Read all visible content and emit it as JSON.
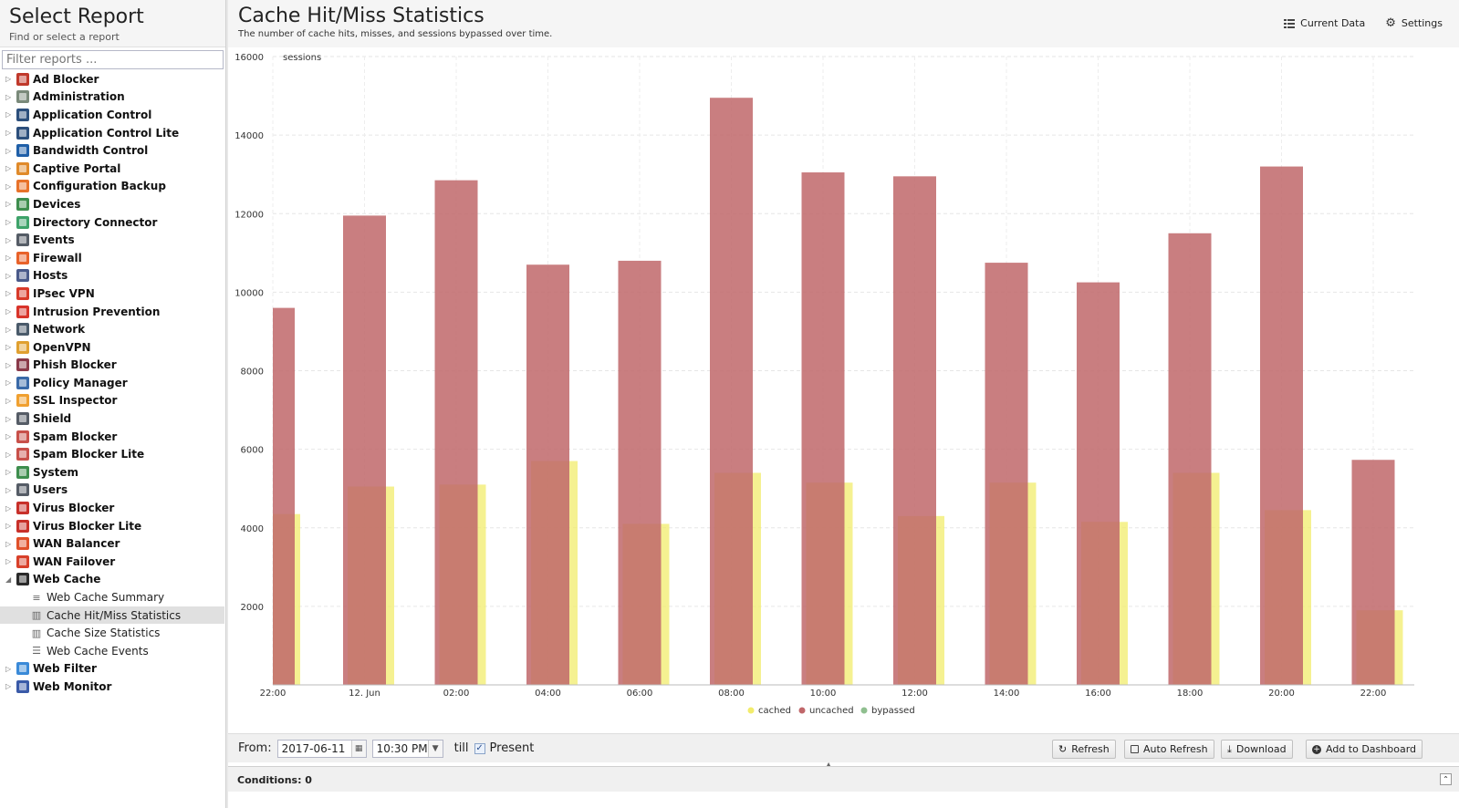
{
  "sidebar": {
    "title": "Select Report",
    "subtitle": "Find or select a report",
    "filter_placeholder": "Filter reports ...",
    "items": [
      {
        "label": "Ad Blocker",
        "icon": "ad-blocker-icon",
        "color": "#c0392b"
      },
      {
        "label": "Administration",
        "icon": "administration-icon",
        "color": "#7a8a7a"
      },
      {
        "label": "Application Control",
        "icon": "application-control-icon",
        "color": "#2c4f7c"
      },
      {
        "label": "Application Control Lite",
        "icon": "application-control-lite-icon",
        "color": "#2c4f7c"
      },
      {
        "label": "Bandwidth Control",
        "icon": "bandwidth-control-icon",
        "color": "#1f5fa8"
      },
      {
        "label": "Captive Portal",
        "icon": "captive-portal-icon",
        "color": "#e08a2a"
      },
      {
        "label": "Configuration Backup",
        "icon": "configuration-backup-icon",
        "color": "#e8722a"
      },
      {
        "label": "Devices",
        "icon": "devices-icon",
        "color": "#3e8e4e"
      },
      {
        "label": "Directory Connector",
        "icon": "directory-connector-icon",
        "color": "#3ea36a"
      },
      {
        "label": "Events",
        "icon": "events-icon",
        "color": "#555c66"
      },
      {
        "label": "Firewall",
        "icon": "firewall-icon",
        "color": "#e8622a"
      },
      {
        "label": "Hosts",
        "icon": "hosts-icon",
        "color": "#4a5a8a"
      },
      {
        "label": "IPsec VPN",
        "icon": "ipsec-vpn-icon",
        "color": "#d83a2a"
      },
      {
        "label": "Intrusion Prevention",
        "icon": "intrusion-prevention-icon",
        "color": "#d8342a"
      },
      {
        "label": "Network",
        "icon": "network-icon",
        "color": "#4a5a6a"
      },
      {
        "label": "OpenVPN",
        "icon": "openvpn-icon",
        "color": "#e0a030"
      },
      {
        "label": "Phish Blocker",
        "icon": "phish-blocker-icon",
        "color": "#8a3a4a"
      },
      {
        "label": "Policy Manager",
        "icon": "policy-manager-icon",
        "color": "#3a6aa8"
      },
      {
        "label": "SSL Inspector",
        "icon": "ssl-inspector-icon",
        "color": "#f0a030"
      },
      {
        "label": "Shield",
        "icon": "shield-icon",
        "color": "#555c66"
      },
      {
        "label": "Spam Blocker",
        "icon": "spam-blocker-icon",
        "color": "#c8504a"
      },
      {
        "label": "Spam Blocker Lite",
        "icon": "spam-blocker-lite-icon",
        "color": "#c8504a"
      },
      {
        "label": "System",
        "icon": "system-icon",
        "color": "#3e8e4e"
      },
      {
        "label": "Users",
        "icon": "users-icon",
        "color": "#555c66"
      },
      {
        "label": "Virus Blocker",
        "icon": "virus-blocker-icon",
        "color": "#c8302a"
      },
      {
        "label": "Virus Blocker Lite",
        "icon": "virus-blocker-lite-icon",
        "color": "#c8302a"
      },
      {
        "label": "WAN Balancer",
        "icon": "wan-balancer-icon",
        "color": "#e0502a"
      },
      {
        "label": "WAN Failover",
        "icon": "wan-failover-icon",
        "color": "#d8402a"
      },
      {
        "label": "Web Cache",
        "icon": "web-cache-icon",
        "color": "#2a2a2a",
        "expanded": true,
        "children": [
          {
            "label": "Web Cache Summary",
            "icon": "text-report-icon"
          },
          {
            "label": "Cache Hit/Miss Statistics",
            "icon": "bar-chart-icon",
            "selected": true
          },
          {
            "label": "Cache Size Statistics",
            "icon": "bar-chart-icon"
          },
          {
            "label": "Web Cache Events",
            "icon": "list-icon"
          }
        ]
      },
      {
        "label": "Web Filter",
        "icon": "web-filter-icon",
        "color": "#3a8ad8"
      },
      {
        "label": "Web Monitor",
        "icon": "web-monitor-icon",
        "color": "#3a5aa8"
      }
    ]
  },
  "header": {
    "title": "Cache Hit/Miss Statistics",
    "subtitle": "The number of cache hits, misses, and sessions bypassed over time.",
    "current_data_label": "Current Data",
    "settings_label": "Settings"
  },
  "chart_data": {
    "type": "bar",
    "ylabel": "sessions",
    "ylim": [
      0,
      16000
    ],
    "yticks": [
      2000,
      4000,
      6000,
      8000,
      10000,
      12000,
      14000,
      16000
    ],
    "xtick_labels": [
      "22:00",
      "12. Jun",
      "02:00",
      "04:00",
      "06:00",
      "08:00",
      "10:00",
      "12:00",
      "14:00",
      "16:00",
      "18:00",
      "20:00",
      "22:00"
    ],
    "series": [
      {
        "name": "cached",
        "color": "#f2ec6c",
        "values": [
          4350,
          5050,
          5100,
          5700,
          4100,
          5400,
          5150,
          4300,
          5150,
          4150,
          5400,
          4450,
          1900
        ]
      },
      {
        "name": "uncached",
        "color": "#c0676a",
        "values": [
          9600,
          11950,
          12850,
          10700,
          10800,
          14950,
          13050,
          12950,
          10750,
          10250,
          11500,
          13200,
          5730
        ]
      },
      {
        "name": "bypassed",
        "color": "#8fbf8f",
        "values": [
          0,
          0,
          0,
          0,
          0,
          0,
          0,
          0,
          0,
          0,
          0,
          0,
          0
        ]
      }
    ],
    "grid": true,
    "legend_position": "bottom"
  },
  "toolbar": {
    "from_label": "From:",
    "from_date": "2017-06-11",
    "from_time": "10:30 PM",
    "till_label": "till",
    "present_label": "Present",
    "present_checked": true,
    "refresh_label": "Refresh",
    "auto_refresh_label": "Auto Refresh",
    "download_label": "Download",
    "add_dashboard_label": "Add to Dashboard"
  },
  "conditions": {
    "label": "Conditions: 0"
  }
}
